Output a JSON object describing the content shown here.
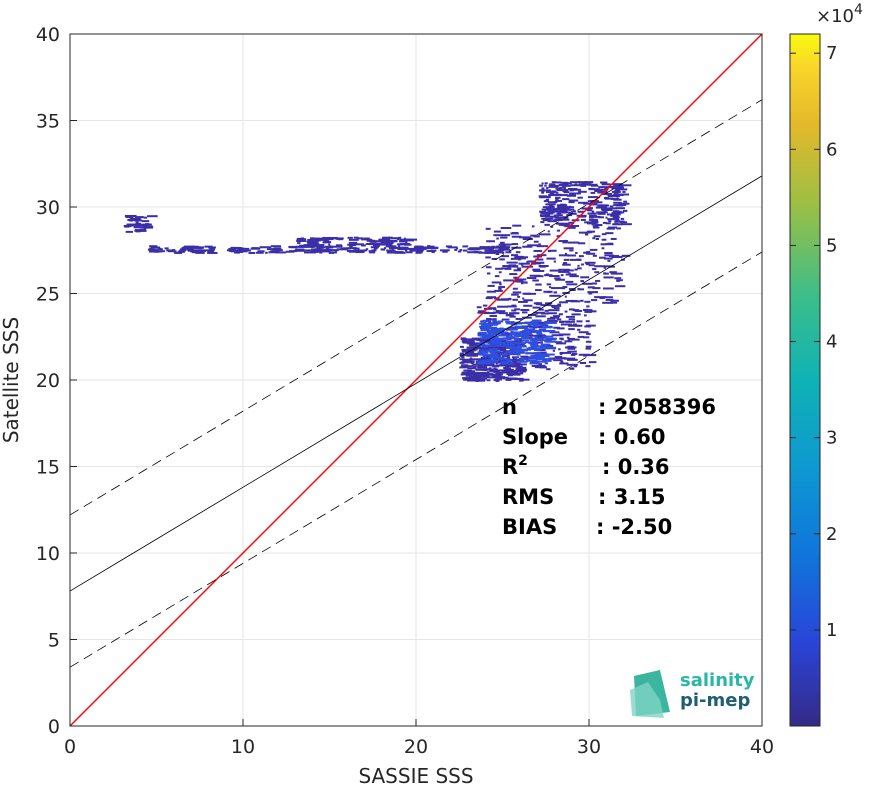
{
  "chart_data": {
    "type": "scatter",
    "subtype": "2D density scatter (heatmap colored by count)",
    "title": "",
    "xlabel": "SASSIE SSS",
    "ylabel": "Satellite SSS",
    "xlim": [
      0,
      40
    ],
    "ylim": [
      0,
      40
    ],
    "xticks": [
      "0",
      "10",
      "20",
      "30",
      "40"
    ],
    "yticks": [
      "0",
      "5",
      "10",
      "15",
      "20",
      "25",
      "30",
      "35",
      "40"
    ],
    "grid": true,
    "colorbar": {
      "colormap": "parula",
      "range": [
        0,
        72000
      ],
      "multiplier_label": "×10",
      "multiplier_exponent": "4",
      "ticks": [
        "1",
        "2",
        "3",
        "4",
        "5",
        "6",
        "7"
      ]
    },
    "reference_lines": [
      {
        "name": "1:1",
        "color": "#ff0000",
        "slope": 1.0,
        "intercept": 0.0,
        "style": "solid"
      },
      {
        "name": "regression",
        "color": "#000000",
        "slope": 0.6,
        "intercept": 7.8,
        "style": "solid"
      },
      {
        "name": "regression + offset",
        "color": "#000000",
        "slope": 0.6,
        "intercept": 12.2,
        "style": "dashed"
      },
      {
        "name": "regression - offset",
        "color": "#000000",
        "slope": 0.6,
        "intercept": 3.4,
        "style": "dashed"
      }
    ],
    "density_clusters": [
      {
        "x": [
          3.1,
          4.5
        ],
        "y": [
          28.6,
          29.6
        ],
        "count": "low"
      },
      {
        "x": [
          4.5,
          25.0
        ],
        "y": [
          27.4,
          27.8
        ],
        "count": "low"
      },
      {
        "x": [
          13.0,
          19.5
        ],
        "y": [
          27.8,
          28.3
        ],
        "count": "low"
      },
      {
        "x": [
          22.5,
          26.0
        ],
        "y": [
          20.0,
          22.5
        ],
        "count": "low"
      },
      {
        "x": [
          23.5,
          30.0
        ],
        "y": [
          20.5,
          24.5
        ],
        "count": "low"
      },
      {
        "x": [
          23.5,
          27.5
        ],
        "y": [
          21.0,
          23.5
        ],
        "count": "medium"
      },
      {
        "x": [
          24.0,
          32.0
        ],
        "y": [
          24.5,
          29.0
        ],
        "count": "low"
      },
      {
        "x": [
          27.0,
          32.0
        ],
        "y": [
          29.0,
          31.5
        ],
        "count": "low"
      }
    ],
    "stats": [
      {
        "label": "n",
        "sep": ": 2058396"
      },
      {
        "label": "Slope",
        "sep": ": 0.60"
      },
      {
        "label": "R",
        "sup": "2",
        "sep": ": 0.36"
      },
      {
        "label": "RMS",
        "sep": ": 3.15"
      },
      {
        "label": "BIAS",
        "sep": ": -2.50"
      }
    ]
  },
  "logo": {
    "line1": "salinity",
    "line2": "pi-mep",
    "color1": "#2bb7a5",
    "color2": "#1f5f73"
  }
}
